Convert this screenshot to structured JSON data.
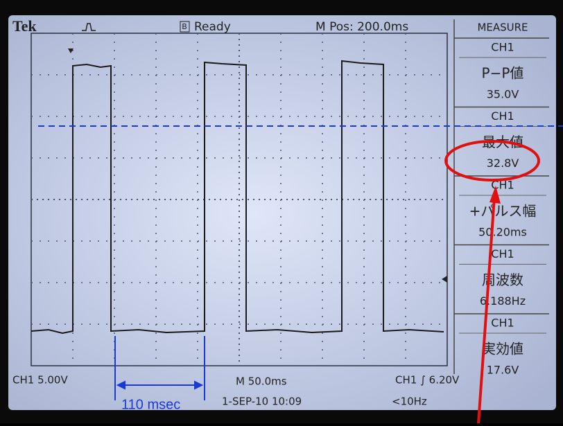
{
  "header": {
    "brand": "Tek",
    "trigger_state_icon": "B",
    "status": "Ready",
    "position": "M Pos: 200.0ms"
  },
  "measure": {
    "title": "MEASURE",
    "items": [
      {
        "channel": "CH1",
        "label": "P−P値",
        "value": "35.0V"
      },
      {
        "channel": "CH1",
        "label": "最大値",
        "value": "32.8V"
      },
      {
        "channel": "CH1",
        "label": "+パルス幅",
        "value": "50.20ms"
      },
      {
        "channel": "CH1",
        "label": "周波数",
        "value": "6.188Hz"
      },
      {
        "channel": "CH1",
        "label": "実効値",
        "value": "17.6V"
      }
    ]
  },
  "footer": {
    "channel_scale": "CH1 5.00V",
    "time_scale": "M 50.0ms",
    "trigger": "CH1 ∫ 6.20V",
    "datetime": "1-SEP-10 10:09",
    "frequency": "<10Hz"
  },
  "annotation": {
    "interval": "110 msec"
  }
}
